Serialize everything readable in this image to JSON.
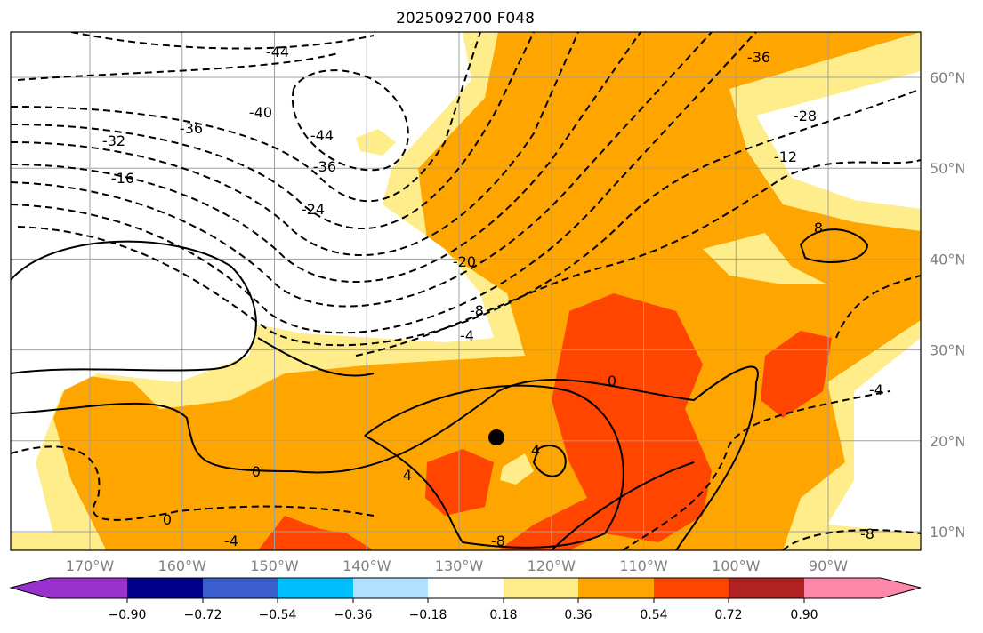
{
  "title": "2025092700 F048",
  "lon_ticks": [
    "170°W",
    "160°W",
    "150°W",
    "140°W",
    "130°W",
    "120°W",
    "110°W",
    "100°W",
    "90°W"
  ],
  "lat_ticks": [
    "60°N",
    "50°N",
    "40°N",
    "30°N",
    "20°N",
    "10°N"
  ],
  "colorbar": {
    "colors": [
      "#9932cc",
      "#00008b",
      "#3a5fcd",
      "#00bfff",
      "#b0e2ff",
      "#ffffff",
      "#ffec8b",
      "#ffa500",
      "#ff4500",
      "#b22222",
      "#ff88aa"
    ],
    "ticks": [
      "−0.90",
      "−0.72",
      "−0.54",
      "−0.36",
      "−0.18",
      "0.18",
      "0.36",
      "0.54",
      "0.72",
      "0.90"
    ]
  },
  "contour_labels": [
    "-44",
    "-40",
    "-44",
    "-36",
    "-32",
    "-16",
    "-36",
    "-24",
    "-20",
    "-8",
    "-4",
    "-36",
    "-28",
    "-12",
    "0",
    "4",
    "0",
    "4",
    "8",
    "0",
    "-4",
    "-4",
    "-8",
    "-8"
  ],
  "marker": "storm-center"
}
